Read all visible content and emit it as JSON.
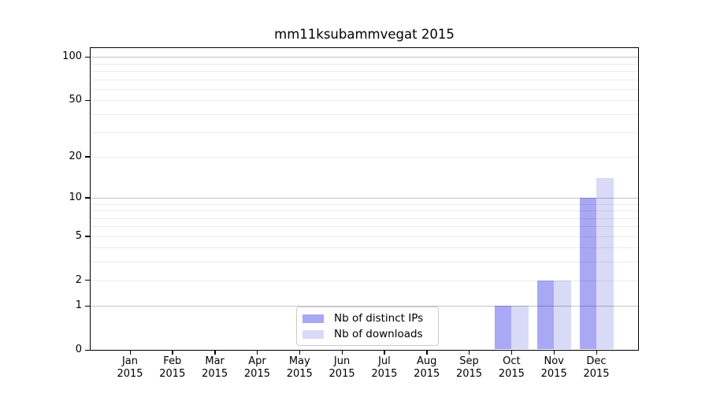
{
  "title": "mm11ksubammvegat 2015",
  "chart_data": {
    "type": "bar",
    "title": "mm11ksubammvegat 2015",
    "categories": [
      "Jan 2015",
      "Feb 2015",
      "Mar 2015",
      "Apr 2015",
      "May 2015",
      "Jun 2015",
      "Jul 2015",
      "Aug 2015",
      "Sep 2015",
      "Oct 2015",
      "Nov 2015",
      "Dec 2015"
    ],
    "x_tick_months": [
      "Jan",
      "Feb",
      "Mar",
      "Apr",
      "May",
      "Jun",
      "Jul",
      "Aug",
      "Sep",
      "Oct",
      "Nov",
      "Dec"
    ],
    "x_tick_year": "2015",
    "series": [
      {
        "name": "Nb of distinct IPs",
        "color": "#a8a8f5",
        "values": [
          0,
          0,
          0,
          0,
          0,
          0,
          0,
          0,
          0,
          1,
          2,
          10
        ]
      },
      {
        "name": "Nb of downloads",
        "color": "#d9d9f8",
        "values": [
          0,
          0,
          0,
          0,
          0,
          0,
          0,
          0,
          0,
          1,
          2,
          14
        ]
      }
    ],
    "y_scale": "log1p",
    "ylim": [
      0,
      117
    ],
    "y_ticks": [
      0,
      1,
      2,
      5,
      10,
      20,
      50,
      100
    ],
    "y_grid_decades": [
      1,
      10,
      100
    ],
    "y_grid_minor": [
      2,
      5,
      3,
      4,
      6,
      7,
      8,
      9,
      20,
      50,
      30,
      40,
      60,
      70,
      80,
      90
    ],
    "grid": true,
    "legend_position": "lower center",
    "colors": {
      "grid_decade": "rgba(0,0,0,0.23)",
      "grid_minor": "rgba(0,0,0,0.08)",
      "axis": "#000000",
      "background": "#ffffff"
    }
  }
}
